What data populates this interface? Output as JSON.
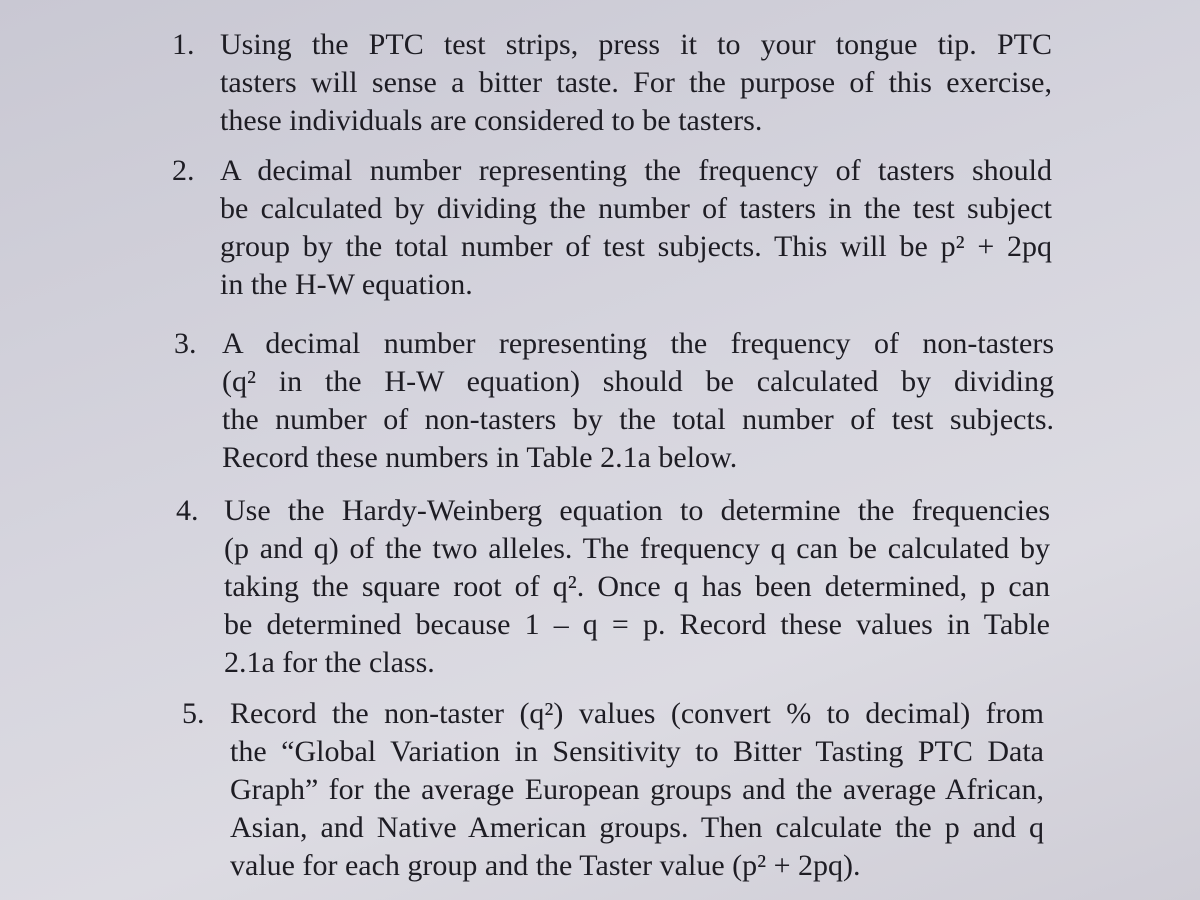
{
  "items": [
    {
      "number": "1.",
      "lines": [
        "Using the PTC test strips, press it to your tongue tip. PTC",
        "tasters will sense a bitter taste. For the purpose of this exercise,",
        "these individuals are considered to be tasters."
      ]
    },
    {
      "number": "2.",
      "lines": [
        "A decimal number representing the frequency of tasters should",
        "be calculated by dividing the number of tasters in the test subject",
        "group by the total number of test subjects. This will be p² + 2pq",
        "in the H-W equation."
      ]
    },
    {
      "number": "3.",
      "lines": [
        "A decimal number representing the frequency of non-tasters",
        "(q² in the H-W equation) should be calculated by dividing",
        "the number of non-tasters by the total number of test subjects.",
        "Record these numbers in Table 2.1a below."
      ]
    },
    {
      "number": "4.",
      "lines": [
        "Use the Hardy-Weinberg equation to determine the frequencies",
        "(p and q) of the two alleles. The frequency q can be calculated by",
        "taking the square root of q². Once q has been determined, p can",
        "be determined because 1 – q = p. Record these values in Table",
        "2.1a for the class."
      ]
    },
    {
      "number": "5.",
      "lines": [
        "Record the non-taster (q²) values (convert % to decimal) from",
        "the “Global Variation in Sensitivity to Bitter Tasting PTC Data",
        "Graph” for the average European groups and the average African,",
        "Asian, and Native American groups. Then calculate the p and q",
        "value for each group and the Taster value (p² + 2pq)."
      ]
    }
  ]
}
